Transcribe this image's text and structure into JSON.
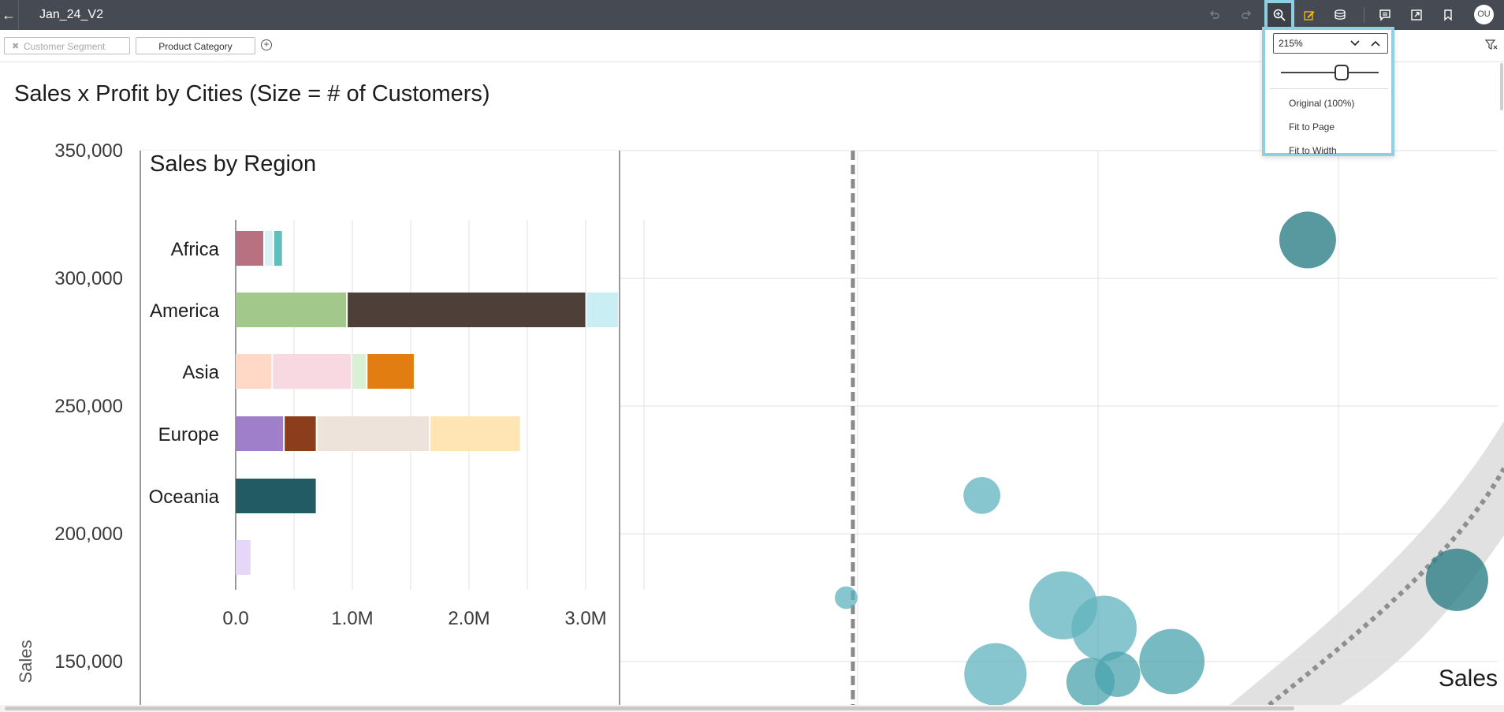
{
  "topbar": {
    "back_icon": "back-arrow-icon",
    "title": "Jan_24_V2",
    "icons": [
      "undo-icon",
      "redo-icon",
      "zoom-icon",
      "edit-icon",
      "data-icon",
      "comment-icon",
      "export-icon",
      "bookmark-icon"
    ],
    "avatar_initials": "OU"
  },
  "filters": {
    "segment_label": "Customer Segment",
    "category_label": "Product Category",
    "add_icon": "add-circle-icon",
    "filter_icon": "filter-clear-icon"
  },
  "zoom_menu": {
    "value": "215%",
    "slider_fraction": 0.62,
    "options": [
      "Original (100%)",
      "Fit to Page",
      "Fit to Width"
    ]
  },
  "page": {
    "chart_title": "Sales x Profit by Cities (Size = # of Customers)"
  },
  "colors": {
    "topbar": "#464a52",
    "accent_highlight": "#8fcfe3",
    "bubble": "#5fb3bd",
    "bubble_dark": "#2e7f88"
  },
  "chart_data": [
    {
      "type": "scatter",
      "title": "Sales x Profit by Cities (Size = # of Customers)",
      "ylabel": "Sales",
      "xlabel": "",
      "ylim": [
        140000,
        360000
      ],
      "yticks": [
        "350,000",
        "300,000",
        "250,000",
        "200,000",
        "150,000"
      ],
      "ytick_values": [
        350000,
        300000,
        250000,
        200000,
        150000
      ],
      "corner_label": "Sales",
      "bubbles": [
        {
          "y": 315000,
          "rel_x": 0.86,
          "size": 1.0,
          "shade": "dark"
        },
        {
          "y": 215000,
          "rel_x": 0.62,
          "size": 0.65,
          "shade": "light"
        },
        {
          "y": 175000,
          "rel_x": 0.52,
          "size": 0.4,
          "shade": "light"
        },
        {
          "y": 172000,
          "rel_x": 0.68,
          "size": 1.2,
          "shade": "light"
        },
        {
          "y": 163000,
          "rel_x": 0.71,
          "size": 1.15,
          "shade": "light"
        },
        {
          "y": 150000,
          "rel_x": 0.76,
          "size": 1.15,
          "shade": "medium"
        },
        {
          "y": 145000,
          "rel_x": 0.63,
          "size": 1.1,
          "shade": "light"
        },
        {
          "y": 145000,
          "rel_x": 0.72,
          "size": 0.8,
          "shade": "medium"
        },
        {
          "y": 142000,
          "rel_x": 0.7,
          "size": 0.85,
          "shade": "medium"
        },
        {
          "y": 182000,
          "rel_x": 0.97,
          "size": 1.1,
          "shade": "dark"
        }
      ]
    },
    {
      "type": "bar",
      "stacked": true,
      "orientation": "horizontal",
      "title": "Sales by Region",
      "categories": [
        "Africa",
        "America",
        "Asia",
        "Europe",
        "Oceania",
        ""
      ],
      "xticks": [
        "0.0",
        "1.0M",
        "2.0M",
        "3.0M"
      ],
      "xtick_values": [
        0,
        1000000,
        2000000,
        3000000
      ],
      "xlim": [
        0,
        3500000
      ],
      "segments": [
        [
          {
            "value": 250000,
            "color": "#b77180"
          },
          {
            "value": 80000,
            "color": "#d9f1f4"
          },
          {
            "value": 80000,
            "color": "#5fbfbc"
          }
        ],
        [
          {
            "value": 960000,
            "color": "#a2c98b"
          },
          {
            "value": 2050000,
            "color": "#4e4038"
          },
          {
            "value": 280000,
            "color": "#c9eff5"
          }
        ],
        [
          {
            "value": 320000,
            "color": "#ffd9c5"
          },
          {
            "value": 680000,
            "color": "#f9d9e1"
          },
          {
            "value": 130000,
            "color": "#d8f0d4"
          },
          {
            "value": 410000,
            "color": "#e27d12"
          }
        ],
        [
          {
            "value": 420000,
            "color": "#a07fca"
          },
          {
            "value": 280000,
            "color": "#8b3d1c"
          },
          {
            "value": 970000,
            "color": "#eee3db"
          },
          {
            "value": 780000,
            "color": "#ffe5b4"
          }
        ],
        [
          {
            "value": 700000,
            "color": "#225b63"
          }
        ],
        [
          {
            "value": 140000,
            "color": "#e6d6f7"
          }
        ]
      ]
    }
  ]
}
